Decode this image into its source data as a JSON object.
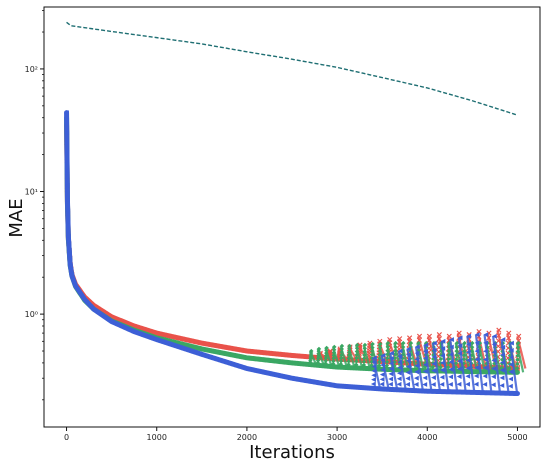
{
  "chart_data": {
    "type": "line",
    "title": "",
    "xlabel": "Iterations",
    "ylabel": "MAE",
    "xlim": [
      -250,
      5250
    ],
    "ylim": [
      0.12,
      320
    ],
    "yscale": "log",
    "xticks": [
      0,
      1000,
      2000,
      3000,
      4000,
      5000
    ],
    "xtick_labels": [
      "0",
      "1000",
      "2000",
      "3000",
      "4000",
      "5000"
    ],
    "yticks": [
      1,
      10,
      100
    ],
    "ytick_labels": [
      "10⁰",
      "10¹",
      "10²"
    ],
    "grid": false,
    "legend": "none",
    "series": [
      {
        "color": "#1f6f73",
        "style": "dashed-line",
        "x": [
          0,
          50,
          500,
          1000,
          1500,
          2000,
          2500,
          3000,
          3500,
          4000,
          4500,
          5000
        ],
        "y": [
          240,
          225,
          202,
          180,
          160,
          138,
          120,
          103,
          85,
          70,
          55,
          42
        ]
      },
      {
        "color": "#e9524a",
        "style": "markers-x",
        "x": [
          0,
          5,
          10,
          20,
          40,
          60,
          100,
          200,
          300,
          500,
          750,
          1000,
          1500,
          2000,
          2500,
          3000,
          3500,
          4000,
          4500,
          5000
        ],
        "y": [
          35,
          15,
          8,
          4.2,
          2.6,
          2.1,
          1.75,
          1.38,
          1.18,
          0.95,
          0.8,
          0.7,
          0.58,
          0.5,
          0.46,
          0.43,
          0.41,
          0.39,
          0.375,
          0.36
        ],
        "spikes": {
          "x_start": 2800,
          "x_end": 5000,
          "period": 110,
          "peak": [
            0.48,
            0.5,
            0.52,
            0.54,
            0.56,
            0.58,
            0.6,
            0.62,
            0.63,
            0.64,
            0.66,
            0.66,
            0.68,
            0.66,
            0.7,
            0.68,
            0.72,
            0.7,
            0.74,
            0.7,
            0.66
          ]
        }
      },
      {
        "color": "#3aa763",
        "style": "markers-diamond",
        "x": [
          0,
          5,
          10,
          20,
          40,
          60,
          100,
          200,
          300,
          500,
          750,
          1000,
          1500,
          2000,
          2500,
          3000,
          3500,
          4000,
          4500,
          5000
        ],
        "y": [
          40,
          16,
          8,
          4.1,
          2.5,
          2.05,
          1.68,
          1.3,
          1.1,
          0.88,
          0.74,
          0.64,
          0.52,
          0.44,
          0.4,
          0.37,
          0.355,
          0.345,
          0.34,
          0.335
        ],
        "spikes": {
          "x_start": 2700,
          "x_end": 5000,
          "period": 85,
          "peak": [
            0.5,
            0.52,
            0.53,
            0.54,
            0.55,
            0.55,
            0.56,
            0.56,
            0.57,
            0.57,
            0.58,
            0.58,
            0.58,
            0.58,
            0.58,
            0.58,
            0.58,
            0.58,
            0.58,
            0.58,
            0.58,
            0.58,
            0.58,
            0.58,
            0.58,
            0.58,
            0.58
          ]
        }
      },
      {
        "color": "#3d5fd6",
        "style": "markers-triangle",
        "x": [
          0,
          5,
          10,
          20,
          40,
          60,
          100,
          200,
          300,
          500,
          750,
          1000,
          1500,
          2000,
          2500,
          3000,
          3500,
          4000,
          4500,
          5000
        ],
        "y": [
          44,
          17,
          8.5,
          4.3,
          2.55,
          2.05,
          1.7,
          1.32,
          1.1,
          0.87,
          0.72,
          0.62,
          0.47,
          0.36,
          0.3,
          0.26,
          0.245,
          0.235,
          0.23,
          0.225
        ],
        "spikes": {
          "x_start": 3400,
          "x_end": 5000,
          "period": 95,
          "peak": [
            0.44,
            0.46,
            0.48,
            0.5,
            0.52,
            0.54,
            0.56,
            0.58,
            0.6,
            0.62,
            0.64,
            0.66,
            0.68,
            0.68,
            0.66,
            0.62,
            0.58
          ]
        }
      }
    ]
  }
}
